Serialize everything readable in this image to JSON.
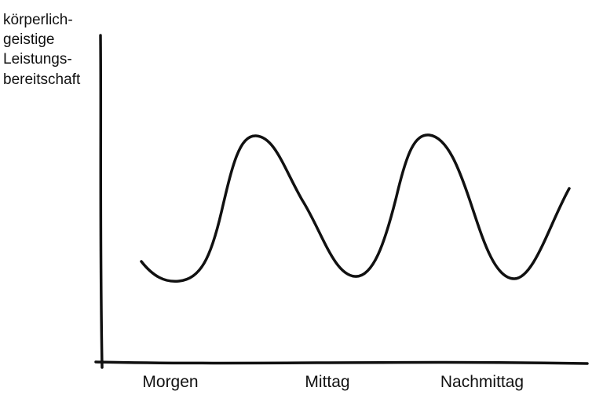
{
  "y_axis": {
    "label_lines": [
      "körperlich-",
      "geistige",
      "Leistungs-",
      "bereitschaft"
    ]
  },
  "x_axis": {
    "labels": [
      "Morgen",
      "Mittag",
      "Nachmittag"
    ]
  }
}
